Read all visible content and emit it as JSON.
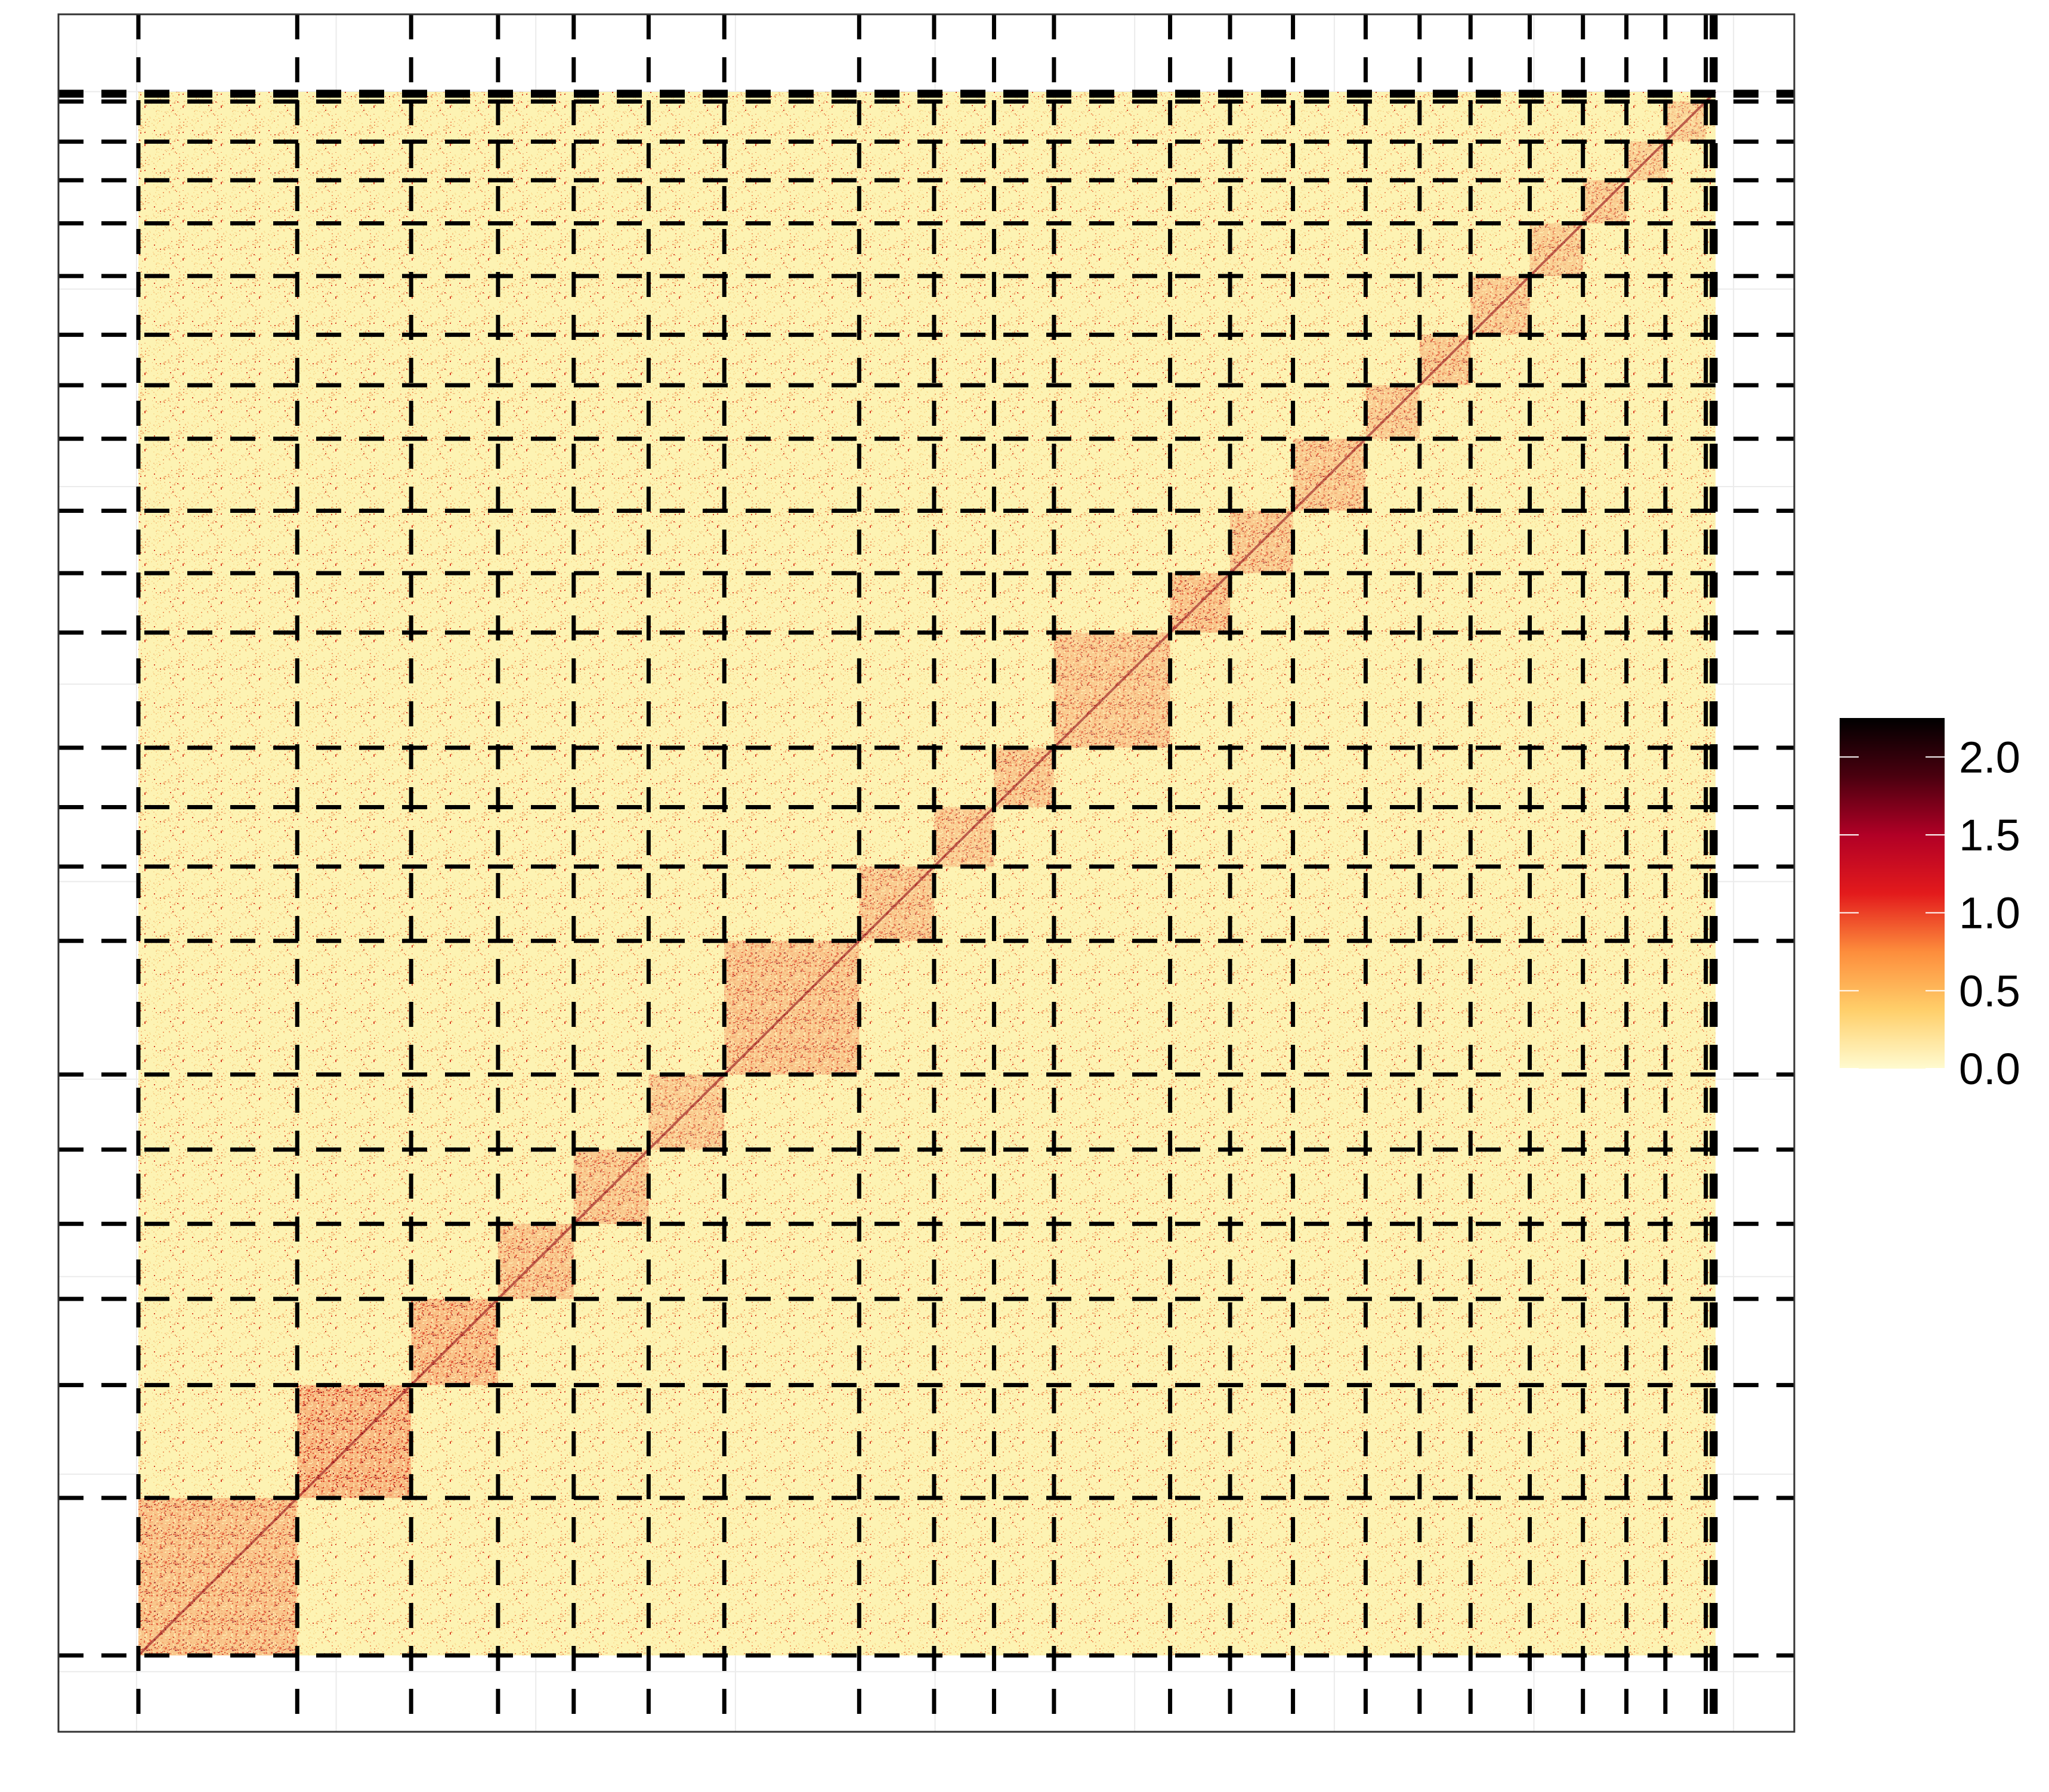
{
  "chart_data": {
    "type": "heatmap",
    "title": "",
    "xlabel": "",
    "ylabel": "",
    "grid": true,
    "legend_position": "right",
    "colorbar": {
      "min": 0.0,
      "max": 2.25,
      "ticks": [
        0.0,
        0.5,
        1.0,
        1.5,
        2.0
      ],
      "tick_labels": [
        "0.0",
        "0.5",
        "1.0",
        "1.5",
        "2.0"
      ],
      "colors": [
        "#fffbd0",
        "#ffcf6a",
        "#fd8d3c",
        "#e31a1c",
        "#b10026",
        "#4a000f",
        "#000000"
      ]
    },
    "matrix": {
      "background_color": "#fdf3b3",
      "block_base_color": "#f7b27a",
      "block_detail_color": "#d9301c",
      "block_hot_color": "#8b0010",
      "chromosome_boundaries": [
        0,
        2.12,
        3.64,
        4.8,
        5.81,
        6.81,
        7.82,
        9.62,
        10.62,
        11.42,
        12.22,
        13.77,
        14.57,
        15.41,
        16.38,
        17.1,
        17.78,
        18.57,
        19.28,
        19.86,
        20.38,
        20.92,
        21.0,
        21.05
      ],
      "extent": [
        0,
        21.05
      ],
      "block_intensity": [
        0.7,
        0.85,
        0.75,
        0.65,
        0.62,
        0.55,
        0.65,
        0.6,
        0.55,
        0.62,
        0.58,
        0.68,
        0.6,
        0.58,
        0.55,
        0.6,
        0.55,
        0.52,
        0.55,
        0.5,
        0.45,
        0.4,
        0.4
      ]
    }
  }
}
